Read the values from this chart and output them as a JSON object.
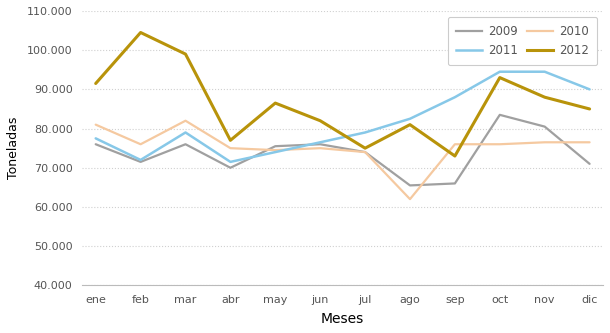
{
  "months": [
    "ene",
    "feb",
    "mar",
    "abr",
    "may",
    "jun",
    "jul",
    "ago",
    "sep",
    "oct",
    "nov",
    "dic"
  ],
  "series": {
    "2009": [
      76000,
      71500,
      76000,
      70000,
      75500,
      76000,
      74000,
      65500,
      66000,
      83500,
      80500,
      71000
    ],
    "2010": [
      81000,
      76000,
      82000,
      75000,
      74500,
      75000,
      74000,
      62000,
      76000,
      76000,
      76500,
      76500
    ],
    "2011": [
      77500,
      72000,
      79000,
      71500,
      74000,
      76500,
      79000,
      82500,
      88000,
      94500,
      94500,
      90000
    ],
    "2012": [
      91500,
      104500,
      99000,
      77000,
      86500,
      82000,
      75000,
      81000,
      73000,
      93000,
      88000,
      85000
    ]
  },
  "colors": {
    "2009": "#a0a0a0",
    "2010": "#f5c9a0",
    "2011": "#87c8e8",
    "2012": "#b8930a"
  },
  "ylim": [
    40000,
    110000
  ],
  "yticks": [
    40000,
    50000,
    60000,
    70000,
    80000,
    90000,
    100000,
    110000
  ],
  "ytick_labels": [
    "40.000",
    "50.000",
    "60.000",
    "70.000",
    "80.000",
    "90.000",
    "100.000",
    "110.000"
  ],
  "xlabel": "Meses",
  "ylabel": "Toneladas",
  "legend_cols_row1": [
    "2009",
    "2011"
  ],
  "legend_cols_row2": [
    "2010",
    "2012"
  ],
  "bg_color": "#ffffff",
  "grid_color": "#d0d0d0",
  "line_widths": {
    "2009": 1.6,
    "2010": 1.6,
    "2011": 1.8,
    "2012": 2.2
  }
}
